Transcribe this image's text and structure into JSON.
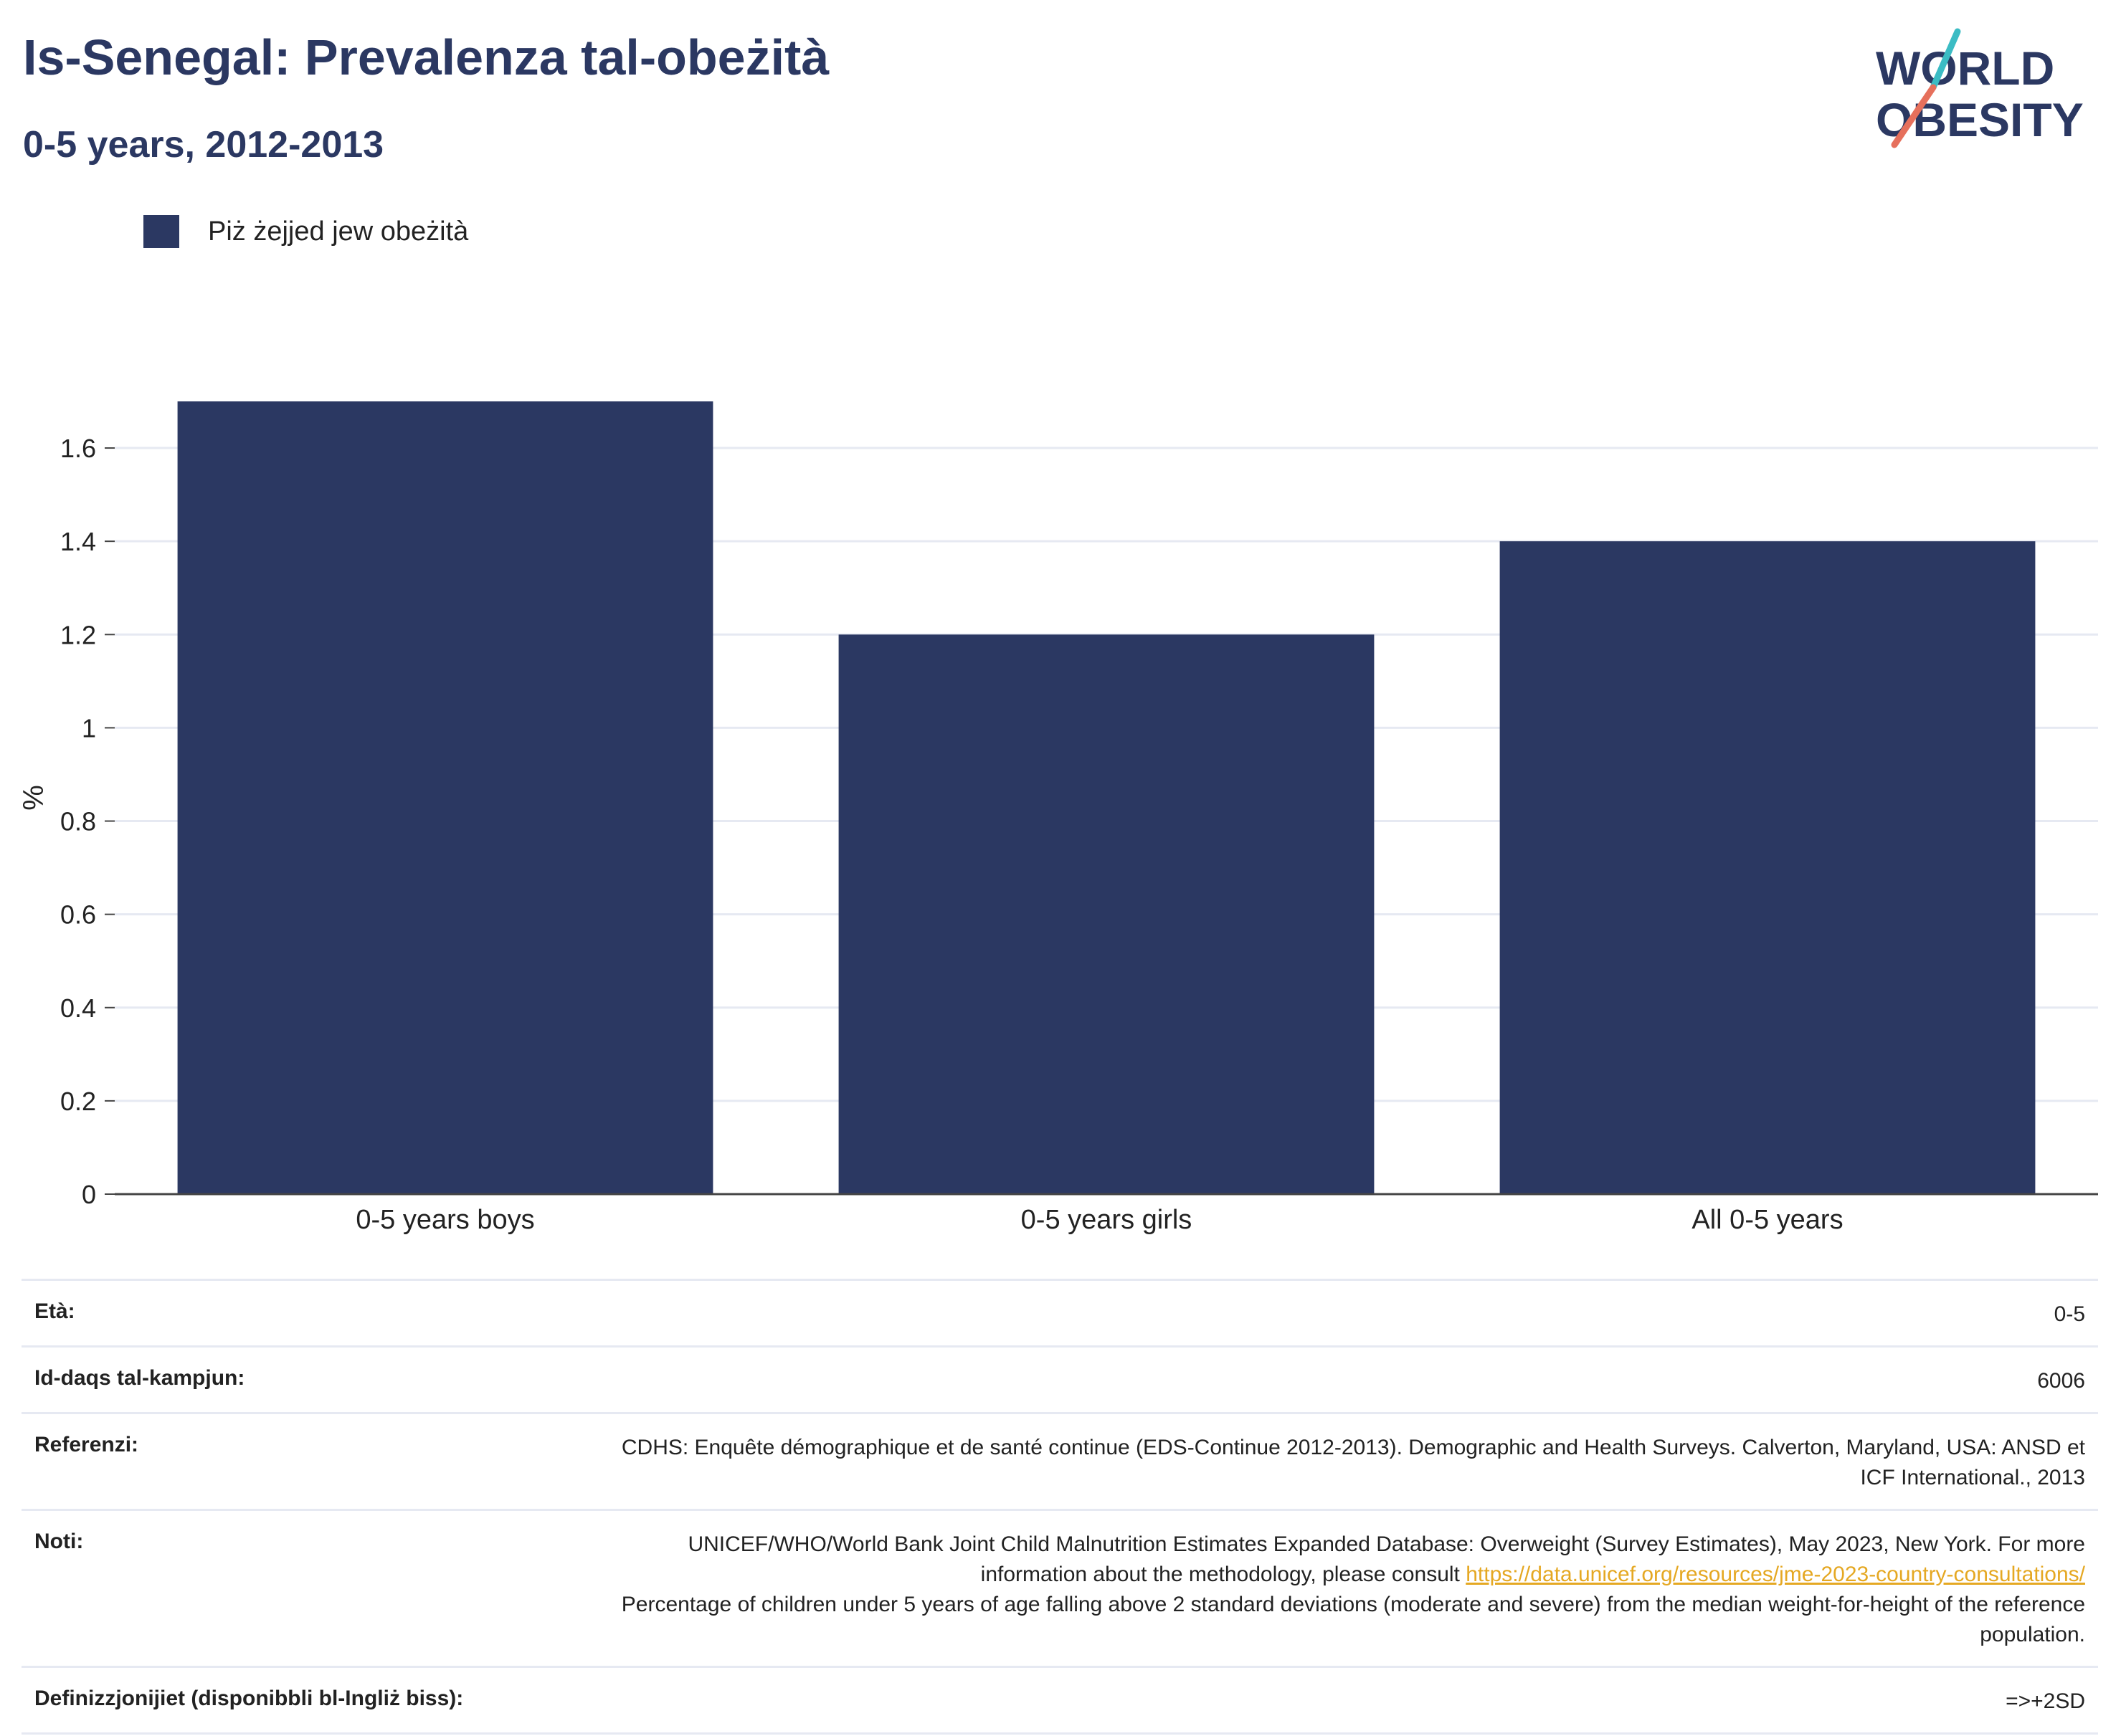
{
  "header": {
    "title": "Is-Senegal: Prevalenza tal-obeżità",
    "subtitle": "0-5 years, 2012-2013"
  },
  "logo": {
    "line1": "WORLD",
    "line2": "OBESITY"
  },
  "colors": {
    "bar": "#2b3862",
    "title": "#2b3862",
    "link": "#e5a823",
    "grid": "#e6e9f2"
  },
  "chart_data": {
    "type": "bar",
    "categories": [
      "0-5 years boys",
      "0-5 years girls",
      "All 0-5 years"
    ],
    "series": [
      {
        "name": "Piż żejjed jew obeżità",
        "values": [
          1.7,
          1.2,
          1.4
        ]
      }
    ],
    "ylabel": "%",
    "xlabel": "",
    "ylim": [
      0,
      1.7
    ],
    "yticks": [
      0,
      0.2,
      0.4,
      0.6,
      0.8,
      1,
      1.2,
      1.4,
      1.6
    ],
    "ytick_labels": [
      "0",
      "0.2",
      "0.4",
      "0.6",
      "0.8",
      "1",
      "1.2",
      "1.4",
      "1.6"
    ],
    "grid": true,
    "legend_position": "top-left"
  },
  "info": {
    "age_label": "Età:",
    "age_value": "0-5",
    "sample_label": "Id-daqs tal-kampjun:",
    "sample_value": "6006",
    "refs_label": "Referenzi:",
    "refs_value": "CDHS: Enquête démographique et de santé continue (EDS-Continue 2012-2013). Demographic and Health Surveys. Calverton, Maryland, USA: ANSD et ICF International., 2013",
    "notes_label": "Noti:",
    "notes_text1": "UNICEF/WHO/World Bank Joint Child Malnutrition Estimates Expanded Database: Overweight (Survey Estimates), May 2023, New York. For more information about the methodology, please consult",
    "notes_link": "https://data.unicef.org/resources/jme-2023-country-consultations/",
    "notes_text2": "Percentage of children under 5 years of age falling above 2 standard deviations (moderate and severe) from the median weight-for-height of the reference population.",
    "defs_label": "Definizzjonijiet (disponibbli bl-Ingliż biss):",
    "defs_value": "=>+2SD"
  }
}
